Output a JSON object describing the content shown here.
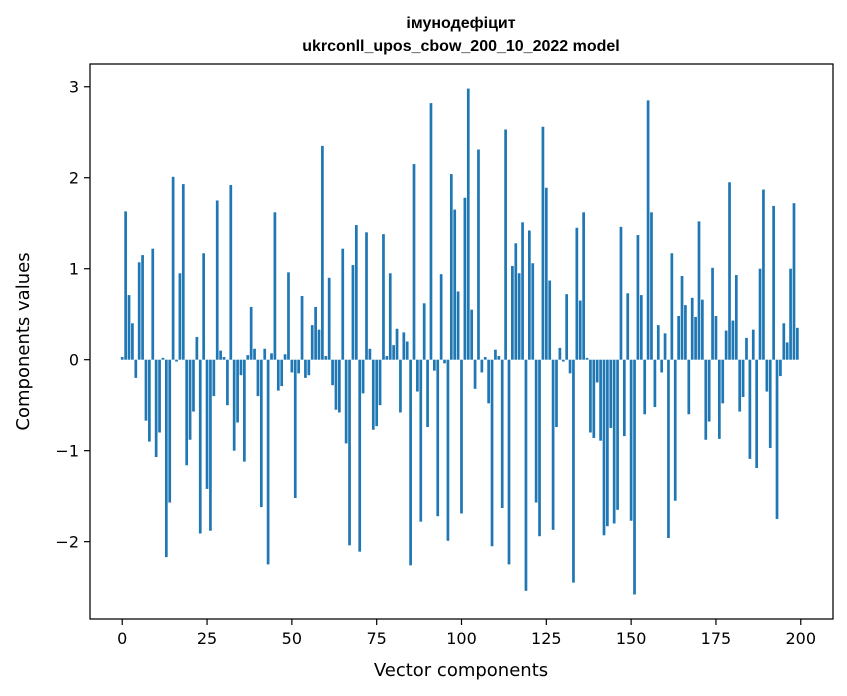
{
  "chart_data": {
    "type": "bar",
    "title": "імунодефіцит",
    "subtitle": "ukrconll_upos_cbow_200_10_2022 model",
    "xlabel": "Vector components",
    "ylabel": "Components values",
    "xlim": [
      -9.5,
      209.5
    ],
    "ylim": [
      -2.85,
      3.25
    ],
    "xticks": [
      0,
      25,
      50,
      75,
      100,
      125,
      150,
      175,
      200
    ],
    "yticks": [
      -2,
      -1,
      0,
      1,
      2,
      3
    ],
    "ytick_labels": [
      "−2",
      "−1",
      "0",
      "1",
      "2",
      "3"
    ],
    "bar_color": "#1f77b4",
    "grid": false,
    "x": [
      0,
      1,
      2,
      3,
      4,
      5,
      6,
      7,
      8,
      9,
      10,
      11,
      12,
      13,
      14,
      15,
      16,
      17,
      18,
      19,
      20,
      21,
      22,
      23,
      24,
      25,
      26,
      27,
      28,
      29,
      30,
      31,
      32,
      33,
      34,
      35,
      36,
      37,
      38,
      39,
      40,
      41,
      42,
      43,
      44,
      45,
      46,
      47,
      48,
      49,
      50,
      51,
      52,
      53,
      54,
      55,
      56,
      57,
      58,
      59,
      60,
      61,
      62,
      63,
      64,
      65,
      66,
      67,
      68,
      69,
      70,
      71,
      72,
      73,
      74,
      75,
      76,
      77,
      78,
      79,
      80,
      81,
      82,
      83,
      84,
      85,
      86,
      87,
      88,
      89,
      90,
      91,
      92,
      93,
      94,
      95,
      96,
      97,
      98,
      99,
      100,
      101,
      102,
      103,
      104,
      105,
      106,
      107,
      108,
      109,
      110,
      111,
      112,
      113,
      114,
      115,
      116,
      117,
      118,
      119,
      120,
      121,
      122,
      123,
      124,
      125,
      126,
      127,
      128,
      129,
      130,
      131,
      132,
      133,
      134,
      135,
      136,
      137,
      138,
      139,
      140,
      141,
      142,
      143,
      144,
      145,
      146,
      147,
      148,
      149,
      150,
      151,
      152,
      153,
      154,
      155,
      156,
      157,
      158,
      159,
      160,
      161,
      162,
      163,
      164,
      165,
      166,
      167,
      168,
      169,
      170,
      171,
      172,
      173,
      174,
      175,
      176,
      177,
      178,
      179,
      180,
      181,
      182,
      183,
      184,
      185,
      186,
      187,
      188,
      189,
      190,
      191,
      192,
      193,
      194,
      195,
      196,
      197,
      198,
      199
    ],
    "values": [
      0.03,
      1.63,
      0.71,
      0.4,
      -0.2,
      1.07,
      1.15,
      -0.67,
      -0.9,
      1.22,
      -1.07,
      -0.8,
      0.02,
      -2.17,
      -1.57,
      2.01,
      -0.02,
      0.95,
      1.93,
      -1.16,
      -0.88,
      -0.57,
      0.25,
      -1.91,
      1.17,
      -1.42,
      -1.88,
      -0.4,
      1.75,
      0.1,
      0.03,
      -0.5,
      1.92,
      -1.0,
      -0.69,
      -0.17,
      -1.12,
      0.05,
      0.58,
      0.12,
      -0.4,
      -1.62,
      0.12,
      -2.25,
      0.07,
      1.62,
      -0.34,
      -0.29,
      0.06,
      0.96,
      -0.14,
      -1.52,
      -0.15,
      0.7,
      -0.2,
      -0.17,
      0.38,
      0.58,
      0.33,
      2.35,
      0.04,
      0.9,
      -0.28,
      -0.55,
      -0.58,
      1.22,
      -0.92,
      -2.04,
      1.04,
      1.48,
      -2.11,
      -0.37,
      1.4,
      0.12,
      -0.77,
      -0.73,
      -0.5,
      1.38,
      0.04,
      0.95,
      0.16,
      0.34,
      -0.58,
      0.3,
      0.2,
      -2.26,
      2.15,
      -0.35,
      -1.78,
      0.62,
      -0.74,
      2.82,
      -0.12,
      -1.72,
      0.94,
      -0.04,
      -1.99,
      2.04,
      1.65,
      0.75,
      -1.69,
      1.78,
      2.98,
      0.55,
      -0.32,
      2.31,
      -0.14,
      0.03,
      -0.48,
      -2.05,
      0.11,
      0.04,
      -1.63,
      2.53,
      -2.25,
      1.03,
      1.28,
      0.95,
      1.51,
      -2.54,
      1.42,
      1.06,
      -1.57,
      -1.94,
      2.56,
      1.89,
      0.87,
      -1.87,
      -0.74,
      0.13,
      -0.02,
      0.72,
      -0.15,
      -2.45,
      1.45,
      0.65,
      1.62,
      0.02,
      -0.8,
      -0.86,
      -0.25,
      -0.89,
      -1.93,
      -1.83,
      -0.75,
      -1.8,
      -1.65,
      1.46,
      -0.84,
      0.73,
      -1.77,
      -2.58,
      1.37,
      0.71,
      -0.6,
      2.85,
      1.62,
      -0.52,
      0.38,
      -0.14,
      0.29,
      -1.96,
      1.17,
      -1.55,
      0.48,
      0.92,
      0.6,
      -0.6,
      0.68,
      0.47,
      1.52,
      0.66,
      -0.88,
      -0.68,
      1.01,
      0.48,
      -0.87,
      -0.48,
      0.32,
      1.95,
      0.43,
      0.93,
      -0.57,
      -0.41,
      0.24,
      -1.09,
      0.33,
      -1.19,
      1.0,
      1.87,
      -0.35,
      -0.97,
      1.69,
      -1.75,
      -0.18,
      0.4,
      0.19,
      1.0,
      1.72,
      0.35
    ]
  }
}
